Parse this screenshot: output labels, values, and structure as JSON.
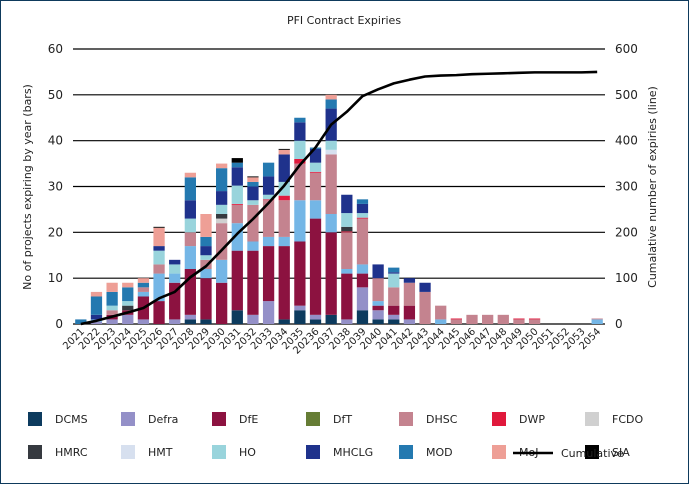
{
  "chart_data": {
    "type": "bar",
    "stacked": true,
    "title": "PFI Contract Expiries",
    "ylabel": "No of projects expiring by year (bars)",
    "y2label": "Cumalative number of expiries (line)",
    "ylim": [
      0,
      60
    ],
    "y2lim": [
      0,
      600
    ],
    "yticks": [
      "0",
      "10",
      "20",
      "30",
      "40",
      "50",
      "60"
    ],
    "y2ticks": [
      "0",
      "100",
      "200",
      "300",
      "400",
      "500",
      "600"
    ],
    "grid": true,
    "legend_position": "bottom",
    "categories": [
      "2021",
      "2022",
      "2023",
      "2024",
      "2025",
      "2026",
      "2027",
      "2028",
      "2029",
      "2030",
      "2031",
      "2032",
      "2033",
      "2034",
      "2035",
      "20236",
      "2037",
      "2038",
      "2039",
      "2040",
      "2041",
      "2042",
      "2043",
      "2044",
      "2045",
      "2046",
      "2047",
      "2048",
      "2049",
      "2050",
      "2051",
      "2052",
      "2053",
      "2054"
    ],
    "series": [
      {
        "name": "DCMS",
        "color": "#0d3b5e",
        "values": [
          0,
          0,
          0,
          0,
          0,
          0,
          0,
          1,
          1,
          0,
          3,
          0,
          0,
          1,
          3,
          1,
          2,
          0,
          3,
          1,
          1,
          0,
          0,
          0,
          0,
          0,
          0,
          0,
          0,
          0,
          0,
          0,
          0,
          0
        ]
      },
      {
        "name": "Defra",
        "color": "#9490c8",
        "values": [
          0,
          0.5,
          1,
          2,
          1,
          0,
          1,
          1,
          0,
          0,
          0,
          2,
          5,
          0,
          1,
          1,
          0,
          1,
          5,
          2,
          1,
          1,
          0,
          0,
          0,
          0,
          0,
          0,
          0,
          0,
          0,
          0,
          0,
          0
        ]
      },
      {
        "name": "DfE",
        "color": "#8c1240",
        "values": [
          0,
          0,
          1,
          1,
          5,
          5,
          8,
          10,
          9,
          9,
          13,
          14,
          12,
          16,
          14,
          21,
          18,
          10,
          3,
          1,
          2,
          3,
          0,
          0,
          0,
          0,
          0,
          0,
          0,
          0,
          0,
          0,
          0,
          0
        ]
      },
      {
        "name": "",
        "color": "#74b6e6",
        "values": [
          0,
          0.5,
          0,
          0,
          1,
          6,
          2,
          5,
          2,
          5,
          6,
          2,
          2,
          2,
          9,
          4,
          4,
          1,
          2,
          1,
          0,
          0,
          0,
          1,
          0,
          0,
          0,
          0,
          0,
          0,
          0,
          0,
          0,
          1
        ]
      },
      {
        "name": "DfT",
        "color": "#667d35",
        "values": [
          0,
          0,
          0,
          0,
          0,
          0,
          0,
          0,
          0,
          0,
          0,
          0,
          0,
          0,
          0,
          0,
          0,
          0,
          0,
          0,
          0,
          0,
          0,
          0,
          0,
          0,
          0,
          0,
          0,
          0,
          0,
          0,
          0,
          0
        ]
      },
      {
        "name": "DHSC",
        "color": "#c4838f",
        "values": [
          0,
          0,
          1,
          0,
          1,
          2,
          0,
          3,
          2,
          8,
          4,
          8,
          8,
          8,
          8,
          6,
          13,
          8,
          10,
          5,
          4,
          5,
          7,
          3,
          1,
          2,
          2,
          2,
          1,
          1,
          0,
          0,
          0,
          0.2
        ]
      },
      {
        "name": "DWP",
        "color": "#e0193c",
        "values": [
          0,
          0,
          0,
          0,
          0,
          0,
          0,
          0,
          0,
          0,
          0.2,
          0,
          0.2,
          1,
          1,
          0.2,
          0,
          0.2,
          0.2,
          0,
          0,
          0,
          0,
          0,
          0.2,
          0,
          0,
          0,
          0.2,
          0.2,
          0,
          0,
          0,
          0
        ]
      },
      {
        "name": "FCDO",
        "color": "#d0d0d0",
        "values": [
          0,
          0,
          0,
          0,
          0,
          0,
          0,
          0,
          0,
          1,
          0,
          0,
          0,
          0,
          0,
          0,
          0,
          0,
          0,
          0,
          0,
          0,
          0,
          0,
          0,
          0,
          0,
          0,
          0,
          0,
          0,
          0,
          0,
          0
        ]
      },
      {
        "name": "HMRC",
        "color": "#363a40",
        "values": [
          0,
          0,
          0,
          1,
          0,
          0,
          0,
          0,
          0,
          1,
          0,
          0,
          0,
          0,
          0,
          0,
          0,
          1,
          0,
          0,
          0,
          0,
          0,
          0,
          0,
          0,
          0,
          0,
          0,
          0,
          0,
          0,
          0,
          0
        ]
      },
      {
        "name": "HMT",
        "color": "#d7e0ef",
        "values": [
          0,
          0,
          0,
          0,
          0,
          0,
          0,
          0,
          0,
          0,
          0,
          0,
          0,
          0,
          0,
          0,
          1,
          0,
          0,
          0,
          0,
          0,
          0,
          0,
          0,
          0,
          0,
          0,
          0,
          0,
          0,
          0,
          0,
          0
        ]
      },
      {
        "name": "HO",
        "color": "#99d4dc",
        "values": [
          0,
          0,
          1,
          1,
          0,
          3,
          2,
          3,
          1,
          2,
          4,
          1,
          1,
          3,
          4,
          2,
          2,
          3,
          1,
          0,
          3,
          0,
          0,
          0,
          0,
          0,
          0,
          0,
          0,
          0,
          0,
          0,
          0,
          0
        ]
      },
      {
        "name": "MHCLG",
        "color": "#1f328c",
        "values": [
          0,
          1,
          0,
          0,
          0,
          1,
          1,
          4,
          2,
          3,
          4,
          3,
          4,
          6,
          4,
          3,
          7,
          4,
          2,
          3,
          0.3,
          1,
          2,
          0,
          0,
          0,
          0,
          0,
          0,
          0,
          0,
          0,
          0,
          0
        ]
      },
      {
        "name": "MOD",
        "color": "#2479b0",
        "values": [
          1,
          4,
          3,
          3,
          1,
          0,
          0,
          5,
          2,
          5,
          1,
          1,
          3,
          0,
          1,
          0.3,
          2,
          0,
          1,
          0,
          1,
          0,
          0,
          0,
          0,
          0,
          0,
          0,
          0,
          0,
          0,
          0,
          0,
          0
        ]
      },
      {
        "name": "MoJ",
        "color": "#ee9f96",
        "values": [
          0,
          1,
          2,
          1,
          1,
          4,
          0,
          1,
          5,
          1,
          0,
          1,
          0,
          1,
          0,
          0,
          1,
          0,
          0,
          0,
          0,
          0,
          0,
          0,
          0,
          0,
          0,
          0,
          0,
          0,
          0,
          0,
          0,
          0
        ]
      },
      {
        "name": "SIA",
        "color": "#000000",
        "values": [
          0,
          0,
          0,
          0,
          0,
          0.2,
          0,
          0,
          0,
          0,
          1,
          0.2,
          0,
          0.2,
          0,
          0,
          0,
          0,
          0,
          0,
          0,
          0,
          0,
          0,
          0,
          0,
          0,
          0,
          0,
          0,
          0,
          0,
          0,
          0
        ]
      }
    ],
    "line": {
      "name": "Cumulative",
      "color": "#000000",
      "axis": "right",
      "values": [
        0,
        7,
        16,
        25,
        35,
        56,
        70,
        102,
        126,
        161,
        197,
        229,
        264,
        302,
        347,
        385,
        435,
        463,
        497,
        512,
        525,
        533,
        540,
        542,
        543,
        545,
        546,
        547,
        548,
        549,
        549,
        549,
        549,
        550
      ]
    }
  },
  "legend": [
    {
      "label": "DCMS",
      "color": "#0d3b5e"
    },
    {
      "label": "Defra",
      "color": "#9490c8"
    },
    {
      "label": "DfE",
      "color": "#8c1240"
    },
    {
      "label": "DfT",
      "color": "#667d35"
    },
    {
      "label": "DHSC",
      "color": "#c4838f"
    },
    {
      "label": "DWP",
      "color": "#e0193c"
    },
    {
      "label": "FCDO",
      "color": "#d0d0d0"
    },
    {
      "label": "HMRC",
      "color": "#363a40"
    },
    {
      "label": "HMT",
      "color": "#d7e0ef"
    },
    {
      "label": "HO",
      "color": "#99d4dc"
    },
    {
      "label": "MHCLG",
      "color": "#1f328c"
    },
    {
      "label": "MOD",
      "color": "#2479b0"
    },
    {
      "label": "MoJ",
      "color": "#ee9f96"
    },
    {
      "label": "SIA",
      "color": "#000000"
    }
  ],
  "legend_line_label": "Cumulative",
  "frame_color": "#0e3a5c"
}
